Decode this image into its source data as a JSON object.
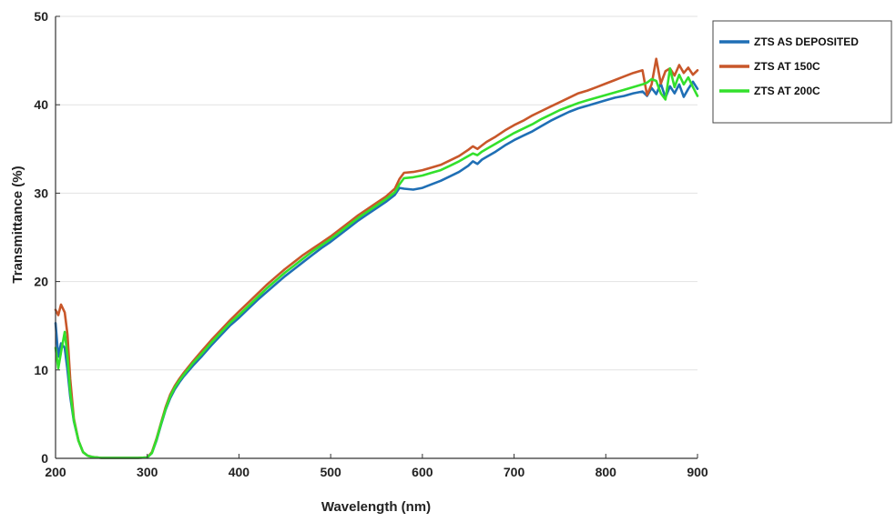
{
  "chart_data": {
    "type": "line",
    "title": "",
    "xlabel": "Wavelength (nm)",
    "ylabel": "Transmittance (%)",
    "xlim": [
      200,
      900
    ],
    "ylim": [
      0,
      50
    ],
    "xticks": [
      "200",
      "300",
      "400",
      "500",
      "600",
      "700",
      "800",
      "900"
    ],
    "yticks": [
      "0",
      "10",
      "20",
      "30",
      "40",
      "50"
    ],
    "grid": "horizontal",
    "legend_position": "top-right, outside plot",
    "x": [
      200,
      203,
      206,
      210,
      213,
      216,
      220,
      225,
      230,
      235,
      240,
      250,
      260,
      270,
      280,
      290,
      300,
      305,
      310,
      315,
      320,
      325,
      330,
      335,
      340,
      350,
      360,
      370,
      380,
      390,
      400,
      410,
      420,
      430,
      440,
      450,
      460,
      470,
      480,
      490,
      500,
      510,
      520,
      530,
      540,
      550,
      560,
      570,
      575,
      580,
      590,
      600,
      610,
      620,
      630,
      640,
      650,
      655,
      660,
      665,
      670,
      680,
      690,
      700,
      710,
      720,
      730,
      740,
      750,
      760,
      770,
      780,
      790,
      800,
      810,
      820,
      830,
      840,
      845,
      850,
      855,
      860,
      865,
      870,
      875,
      880,
      885,
      890,
      895,
      900
    ],
    "series": [
      {
        "name": "ZTS AS DEPOSITED",
        "color": "#1f6fb5",
        "values": [
          15.3,
          11.5,
          13.0,
          12.5,
          10.0,
          7.0,
          4.2,
          2.0,
          0.7,
          0.3,
          0.15,
          0.05,
          0.05,
          0.05,
          0.05,
          0.05,
          0.1,
          0.6,
          2.0,
          3.8,
          5.5,
          6.8,
          7.8,
          8.6,
          9.3,
          10.5,
          11.6,
          12.8,
          13.9,
          15.0,
          15.9,
          16.9,
          17.9,
          18.8,
          19.7,
          20.6,
          21.4,
          22.2,
          23.0,
          23.8,
          24.5,
          25.3,
          26.1,
          26.9,
          27.6,
          28.3,
          29.0,
          29.8,
          30.6,
          30.5,
          30.4,
          30.6,
          31.0,
          31.4,
          31.9,
          32.4,
          33.1,
          33.6,
          33.3,
          33.8,
          34.1,
          34.7,
          35.4,
          36.0,
          36.5,
          37.0,
          37.6,
          38.2,
          38.7,
          39.2,
          39.6,
          39.9,
          40.2,
          40.5,
          40.8,
          41.0,
          41.3,
          41.5,
          41.0,
          41.9,
          41.2,
          42.4,
          40.8,
          42.1,
          41.3,
          42.3,
          40.9,
          41.8,
          42.6,
          41.8
        ]
      },
      {
        "name": "ZTS AT 150C",
        "color": "#c8572a",
        "values": [
          16.8,
          16.2,
          17.4,
          16.5,
          14.0,
          9.0,
          4.5,
          2.0,
          0.7,
          0.3,
          0.15,
          0.05,
          0.05,
          0.05,
          0.05,
          0.05,
          0.1,
          0.7,
          2.2,
          4.0,
          5.8,
          7.2,
          8.2,
          9.0,
          9.7,
          11.0,
          12.2,
          13.4,
          14.5,
          15.6,
          16.6,
          17.6,
          18.6,
          19.6,
          20.5,
          21.4,
          22.2,
          23.0,
          23.7,
          24.4,
          25.1,
          25.9,
          26.7,
          27.5,
          28.2,
          28.9,
          29.6,
          30.5,
          31.6,
          32.3,
          32.4,
          32.6,
          32.9,
          33.2,
          33.7,
          34.2,
          34.9,
          35.3,
          35.0,
          35.4,
          35.8,
          36.4,
          37.1,
          37.7,
          38.2,
          38.8,
          39.3,
          39.8,
          40.3,
          40.8,
          41.3,
          41.6,
          42.0,
          42.4,
          42.8,
          43.2,
          43.6,
          43.9,
          41.1,
          42.3,
          45.2,
          42.4,
          43.8,
          44.1,
          43.3,
          44.5,
          43.6,
          44.2,
          43.4,
          43.9
        ]
      },
      {
        "name": "ZTS AT 200C",
        "color": "#33e02c",
        "values": [
          12.5,
          10.2,
          12.0,
          14.3,
          11.5,
          7.5,
          4.3,
          2.0,
          0.7,
          0.3,
          0.15,
          0.05,
          0.05,
          0.05,
          0.05,
          0.05,
          0.1,
          0.6,
          2.1,
          3.9,
          5.6,
          7.0,
          8.0,
          8.8,
          9.5,
          10.8,
          11.9,
          13.1,
          14.2,
          15.3,
          16.2,
          17.2,
          18.2,
          19.2,
          20.1,
          21.0,
          21.8,
          22.6,
          23.4,
          24.1,
          24.8,
          25.6,
          26.4,
          27.2,
          27.9,
          28.6,
          29.3,
          30.1,
          31.0,
          31.7,
          31.8,
          32.0,
          32.3,
          32.6,
          33.1,
          33.6,
          34.2,
          34.5,
          34.3,
          34.7,
          35.0,
          35.6,
          36.2,
          36.8,
          37.3,
          37.8,
          38.4,
          38.9,
          39.4,
          39.8,
          40.2,
          40.5,
          40.8,
          41.1,
          41.4,
          41.7,
          42.0,
          42.3,
          42.5,
          42.9,
          42.7,
          41.3,
          40.6,
          44.1,
          42.0,
          43.4,
          42.3,
          43.1,
          42.0,
          41.0
        ]
      }
    ]
  }
}
